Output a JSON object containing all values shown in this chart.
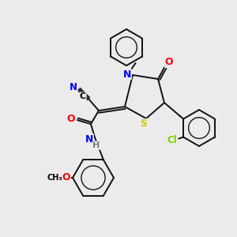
{
  "background_color": "#ebebeb",
  "fig_size": [
    3.0,
    3.0
  ],
  "dpi": 100,
  "atom_colors": {
    "N": "#0000ff",
    "O": "#ff0000",
    "S": "#cccc00",
    "Cl": "#88cc00",
    "C_label": "#000000",
    "H": "#708090",
    "default": "#000000"
  },
  "bond_color": "#111111",
  "bond_width": 1.4
}
